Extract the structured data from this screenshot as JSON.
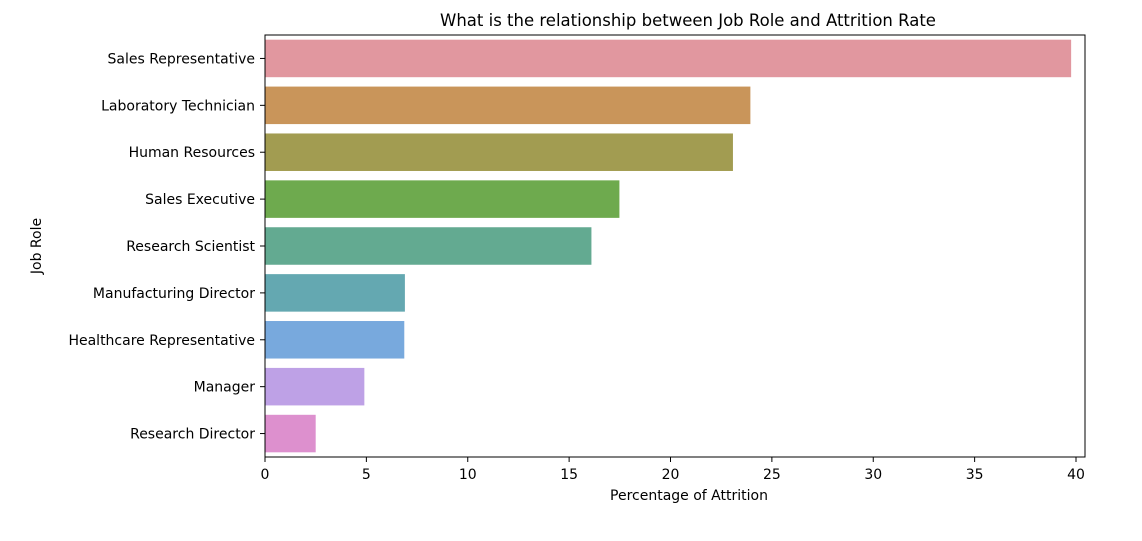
{
  "chart_data": {
    "type": "bar",
    "orientation": "horizontal",
    "title": "What is the relationship between Job Role and Attrition Rate",
    "xlabel": "Percentage of Attrition",
    "ylabel": "Job Role",
    "xlim": [
      0,
      42
    ],
    "xticks": [
      0,
      5,
      10,
      15,
      20,
      25,
      30,
      35,
      40
    ],
    "grid": false,
    "categories": [
      "Sales Representative",
      "Laboratory Technician",
      "Human Resources",
      "Sales Executive",
      "Research Scientist",
      "Manufacturing Director",
      "Healthcare Representative",
      "Manager",
      "Research Director"
    ],
    "values": [
      39.76,
      23.94,
      23.08,
      17.48,
      16.1,
      6.9,
      6.87,
      4.9,
      2.5
    ],
    "colors": [
      "#e1979f",
      "#c9955a",
      "#a29c51",
      "#6eaa4e",
      "#63aa91",
      "#64a8b1",
      "#78a9dd",
      "#bea1e6",
      "#dd90ce"
    ]
  }
}
